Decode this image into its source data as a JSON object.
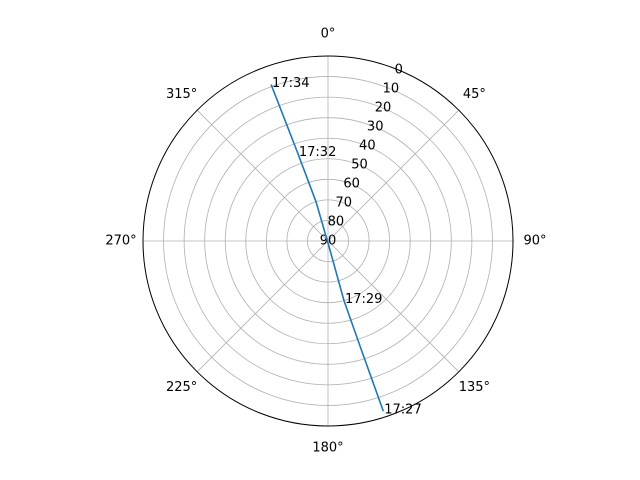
{
  "chart_data": {
    "type": "line",
    "projection": "polar",
    "theta_zero_location": "N",
    "theta_direction": "clockwise",
    "radial_axis": "elevation",
    "rlim": [
      90,
      0
    ],
    "rticks": [
      0,
      10,
      20,
      30,
      40,
      50,
      60,
      70,
      80,
      90
    ],
    "rtick_labels": [
      "0",
      "10",
      "20",
      "30",
      "40",
      "50",
      "60",
      "70",
      "80",
      "90"
    ],
    "theta_ticks": [
      0,
      45,
      90,
      135,
      180,
      225,
      270,
      315
    ],
    "theta_tick_labels": [
      "0°",
      "45°",
      "90°",
      "135°",
      "180°",
      "225°",
      "270°",
      "315°"
    ],
    "grid": true,
    "series": [
      {
        "color": "#1f77b4",
        "azimuth_deg": [
          162,
          163,
          165,
          168,
          343,
          341,
          340
        ],
        "elevation_deg": [
          3,
          35,
          60,
          86,
          70,
          45,
          9
        ]
      }
    ],
    "annotations": [
      {
        "text": "17:27",
        "azimuth_deg": 162,
        "elevation_deg": 3
      },
      {
        "text": "17:29",
        "azimuth_deg": 165,
        "elevation_deg": 60
      },
      {
        "text": "17:32",
        "azimuth_deg": 341,
        "elevation_deg": 45
      },
      {
        "text": "17:34",
        "azimuth_deg": 340,
        "elevation_deg": 9
      }
    ]
  }
}
